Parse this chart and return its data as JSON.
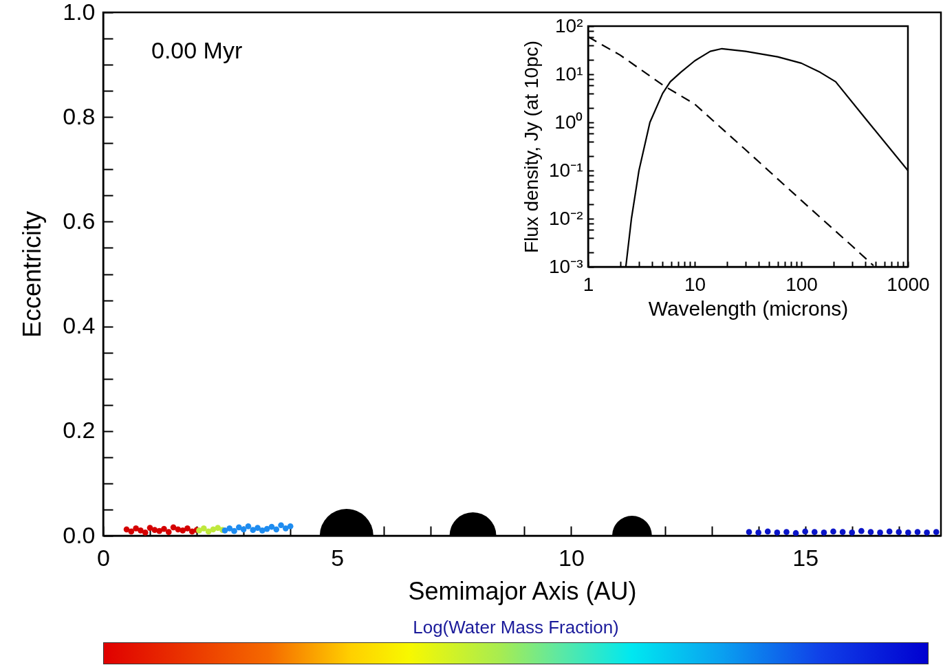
{
  "chart_data": [
    {
      "type": "scatter",
      "xlabel": "Semimajor Axis (AU)",
      "ylabel": "Eccentricity",
      "clabel": "Log(Water Mass Fraction)",
      "annotations": [
        "0.00 Myr"
      ],
      "marker": "circle",
      "xlim": [
        0,
        17.9
      ],
      "ylim": [
        0,
        1.0
      ],
      "xticks": [
        0,
        {
          "value": 1,
          "label": null
        },
        {
          "value": 2,
          "label": null
        },
        {
          "value": 3,
          "label": null
        },
        {
          "value": 4,
          "label": null
        },
        5,
        {
          "value": 6,
          "label": null
        },
        {
          "value": 7,
          "label": null
        },
        {
          "value": 8,
          "label": null
        },
        {
          "value": 9,
          "label": null
        },
        10,
        {
          "value": 11,
          "label": null
        },
        {
          "value": 12,
          "label": null
        },
        {
          "value": 13,
          "label": null
        },
        {
          "value": 14,
          "label": null
        },
        15,
        {
          "value": 16,
          "label": null
        },
        {
          "value": 17,
          "label": null
        }
      ],
      "yticks": [
        {
          "value": 0,
          "label": "0.0"
        },
        {
          "value": 0.05,
          "label": null
        },
        {
          "value": 0.1,
          "label": null
        },
        {
          "value": 0.15,
          "label": null
        },
        0.2,
        {
          "value": 0.25,
          "label": null
        },
        {
          "value": 0.3,
          "label": null
        },
        {
          "value": 0.35,
          "label": null
        },
        0.4,
        {
          "value": 0.45,
          "label": null
        },
        {
          "value": 0.5,
          "label": null
        },
        {
          "value": 0.55,
          "label": null
        },
        0.6,
        {
          "value": 0.65,
          "label": null
        },
        {
          "value": 0.7,
          "label": null
        },
        {
          "value": 0.75,
          "label": null
        },
        0.8,
        {
          "value": 0.85,
          "label": null
        },
        {
          "value": 0.9,
          "label": null
        },
        {
          "value": 0.95,
          "label": null
        },
        {
          "value": 1.0,
          "label": "1.0"
        }
      ],
      "series": [
        {
          "type": "scatter",
          "color": "#d40000",
          "x": [
            0.5,
            0.6,
            0.7,
            0.8,
            0.9,
            1.0,
            1.1,
            1.2,
            1.3,
            1.4,
            1.5,
            1.6,
            1.7,
            1.8,
            1.9,
            2.0
          ],
          "values": [
            0.012,
            0.008,
            0.014,
            0.01,
            0.006,
            0.015,
            0.011,
            0.009,
            0.013,
            0.007,
            0.016,
            0.012,
            0.01,
            0.014,
            0.008,
            0.011
          ]
        },
        {
          "type": "scatter",
          "color": "#bfe83c",
          "x": [
            2.05,
            2.15,
            2.25,
            2.35,
            2.45,
            2.55
          ],
          "values": [
            0.01,
            0.014,
            0.008,
            0.012,
            0.015,
            0.011
          ]
        },
        {
          "type": "scatter",
          "color": "#1e8cf0",
          "x": [
            2.6,
            2.7,
            2.8,
            2.9,
            3.0,
            3.1,
            3.2,
            3.3,
            3.4,
            3.5,
            3.6,
            3.7,
            3.8,
            3.9,
            4.0
          ],
          "values": [
            0.01,
            0.014,
            0.009,
            0.016,
            0.012,
            0.018,
            0.011,
            0.015,
            0.01,
            0.013,
            0.017,
            0.012,
            0.02,
            0.014,
            0.018
          ]
        },
        {
          "type": "scatter",
          "color": "#0a14c8",
          "x": [
            13.8,
            14.0,
            14.2,
            14.4,
            14.6,
            14.8,
            15.0,
            15.2,
            15.4,
            15.6,
            15.8,
            16.0,
            16.2,
            16.4,
            16.6,
            16.8,
            17.0,
            17.2,
            17.4,
            17.6,
            17.8
          ],
          "values": [
            0.007,
            0.006,
            0.008,
            0.006,
            0.007,
            0.005,
            0.008,
            0.007,
            0.006,
            0.008,
            0.007,
            0.006,
            0.009,
            0.007,
            0.006,
            0.008,
            0.007,
            0.006,
            0.007,
            0.006,
            0.007
          ]
        },
        {
          "type": "bubble",
          "color": "#000000",
          "x": [
            5.2,
            7.9,
            11.3
          ],
          "values": [
            0,
            0,
            0
          ],
          "sizes": [
            1,
            0.76,
            0.55
          ]
        }
      ]
    },
    {
      "type": "line",
      "xlabel": "Wavelength (microns)",
      "ylabel": "Flux density, Jy (at 10pc)",
      "log": "xy",
      "xlim": [
        1,
        1000
      ],
      "ylim": [
        0.001,
        100
      ],
      "xticks": [
        1,
        {
          "value": 2,
          "label": null
        },
        {
          "value": 3,
          "label": null
        },
        {
          "value": 4,
          "label": null
        },
        {
          "value": 5,
          "label": null
        },
        {
          "value": 6,
          "label": null
        },
        {
          "value": 7,
          "label": null
        },
        {
          "value": 8,
          "label": null
        },
        {
          "value": 9,
          "label": null
        },
        10,
        {
          "value": 20,
          "label": null
        },
        {
          "value": 30,
          "label": null
        },
        {
          "value": 40,
          "label": null
        },
        {
          "value": 50,
          "label": null
        },
        {
          "value": 60,
          "label": null
        },
        {
          "value": 70,
          "label": null
        },
        {
          "value": 80,
          "label": null
        },
        {
          "value": 90,
          "label": null
        },
        100,
        {
          "value": 200,
          "label": null
        },
        {
          "value": 300,
          "label": null
        },
        {
          "value": 400,
          "label": null
        },
        {
          "value": 500,
          "label": null
        },
        {
          "value": 600,
          "label": null
        },
        {
          "value": 700,
          "label": null
        },
        {
          "value": 800,
          "label": null
        },
        {
          "value": 900,
          "label": null
        },
        1000
      ],
      "yticks": [
        {
          "value": 0.001,
          "label": "10⁻³"
        },
        {
          "value": 0.002,
          "label": null
        },
        {
          "value": 0.004,
          "label": null
        },
        {
          "value": 0.006,
          "label": null
        },
        {
          "value": 0.008,
          "label": null
        },
        {
          "value": 0.01,
          "label": "10⁻²"
        },
        {
          "value": 0.02,
          "label": null
        },
        {
          "value": 0.04,
          "label": null
        },
        {
          "value": 0.06,
          "label": null
        },
        {
          "value": 0.08,
          "label": null
        },
        {
          "value": 0.1,
          "label": "10⁻¹"
        },
        {
          "value": 0.2,
          "label": null
        },
        {
          "value": 0.4,
          "label": null
        },
        {
          "value": 0.6,
          "label": null
        },
        {
          "value": 0.8,
          "label": null
        },
        {
          "value": 1,
          "label": "10⁰"
        },
        {
          "value": 2,
          "label": null
        },
        {
          "value": 4,
          "label": null
        },
        {
          "value": 6,
          "label": null
        },
        {
          "value": 8,
          "label": null
        },
        {
          "value": 10,
          "label": "10¹"
        },
        {
          "value": 20,
          "label": null
        },
        {
          "value": 40,
          "label": null
        },
        {
          "value": 60,
          "label": null
        },
        {
          "value": 80,
          "label": null
        },
        {
          "value": 100,
          "label": "10²"
        }
      ],
      "series": [
        {
          "color": "#000000",
          "line_style": "solid",
          "x": [
            2.26,
            2.55,
            3.0,
            3.8,
            5.0,
            5.9,
            7.4,
            10,
            14,
            18,
            30,
            60,
            100,
            150,
            210,
            400,
            1000
          ],
          "values": [
            0.001,
            0.01,
            0.1,
            1,
            4,
            7,
            11,
            19,
            30,
            34,
            30,
            23,
            17,
            11,
            7,
            1.2,
            0.1
          ]
        },
        {
          "color": "#000000",
          "line_style": "dashed",
          "x": [
            1,
            2,
            5,
            10,
            30,
            100,
            300,
            475
          ],
          "values": [
            60,
            25,
            6,
            2.4,
            0.27,
            0.024,
            0.0027,
            0.00106
          ]
        }
      ]
    }
  ]
}
